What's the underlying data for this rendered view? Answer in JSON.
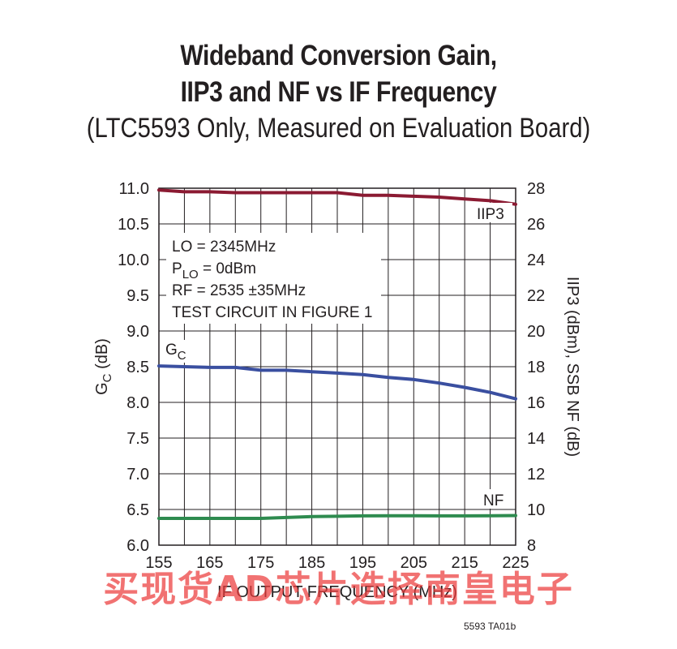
{
  "title_line1": "Wideband Conversion Gain,",
  "title_line2": "IIP3 and NF vs IF Frequency",
  "subtitle": "(LTC5593 Only, Measured on Evaluation Board)",
  "figure_id": "5593 TA01b",
  "watermark": "买现货AD芯片选择南皇电子",
  "colors": {
    "iip3": "#8b1a32",
    "gc": "#3a4fa0",
    "nf": "#2e8b4f",
    "grid": "#231f20"
  },
  "chart_data": {
    "type": "line",
    "xlabel": "IF OUTPUT FREQUENCY (MHz)",
    "ylabel_left_main": "G",
    "ylabel_left_sub": "C",
    "ylabel_left_unit": " (dB)",
    "ylabel_right": "IIP3 (dBm), SSB NF (dB)",
    "xlim": [
      155,
      225
    ],
    "ylim_left": [
      6.0,
      11.0
    ],
    "ylim_right": [
      8,
      28
    ],
    "xticks": [
      155,
      160,
      165,
      170,
      175,
      180,
      185,
      190,
      195,
      200,
      205,
      210,
      215,
      220,
      225
    ],
    "xtick_labels": [
      "155",
      "",
      "165",
      "",
      "175",
      "",
      "185",
      "",
      "195",
      "",
      "205",
      "",
      "215",
      "",
      "225"
    ],
    "yticks_left": [
      "11.0",
      "10.5",
      "10.0",
      "9.5",
      "9.0",
      "8.5",
      "8.0",
      "7.5",
      "7.0",
      "6.5",
      "6.0"
    ],
    "yticks_right": [
      "28",
      "26",
      "24",
      "22",
      "20",
      "18",
      "16",
      "14",
      "12",
      "10",
      "8"
    ],
    "annotations": [
      "LO = 2345MHz",
      "P",
      "LO",
      " = 0dBm",
      "RF = 2535 ±35MHz",
      "TEST CIRCUIT IN FIGURE 1"
    ],
    "series": [
      {
        "name": "IIP3",
        "axis": "right",
        "x": [
          155,
          160,
          165,
          170,
          175,
          180,
          185,
          190,
          195,
          200,
          205,
          210,
          215,
          220,
          225
        ],
        "y": [
          27.9,
          27.8,
          27.8,
          27.75,
          27.75,
          27.75,
          27.75,
          27.75,
          27.6,
          27.6,
          27.55,
          27.5,
          27.4,
          27.3,
          27.1
        ]
      },
      {
        "name": "GC",
        "name_main": "G",
        "name_sub": "C",
        "axis": "left",
        "x": [
          155,
          160,
          165,
          170,
          175,
          180,
          185,
          190,
          195,
          200,
          205,
          210,
          215,
          220,
          225
        ],
        "y": [
          8.51,
          8.5,
          8.49,
          8.49,
          8.45,
          8.45,
          8.43,
          8.41,
          8.39,
          8.35,
          8.32,
          8.27,
          8.21,
          8.14,
          8.05
        ]
      },
      {
        "name": "NF",
        "axis": "right",
        "x": [
          155,
          160,
          165,
          170,
          175,
          180,
          185,
          190,
          195,
          200,
          205,
          210,
          215,
          220,
          225
        ],
        "y": [
          9.5,
          9.5,
          9.5,
          9.5,
          9.5,
          9.55,
          9.6,
          9.62,
          9.64,
          9.65,
          9.65,
          9.64,
          9.64,
          9.65,
          9.66
        ]
      }
    ]
  }
}
